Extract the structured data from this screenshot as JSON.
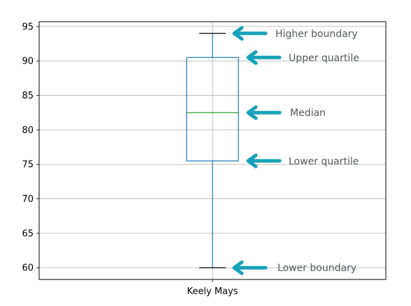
{
  "chart_data": {
    "type": "box",
    "categories": [
      "Keely Mays"
    ],
    "series": [
      {
        "category": "Keely Mays",
        "min": 60,
        "q1": 75.5,
        "median": 82.5,
        "q3": 90.5,
        "max": 94
      }
    ],
    "ylim": [
      58.3,
      95.7
    ],
    "yticks": [
      60,
      65,
      70,
      75,
      80,
      85,
      90,
      95
    ],
    "grid": true,
    "colors": {
      "box": "#1f77b4",
      "median": "#2ca02c",
      "cap": "#000000",
      "grid": "#b0b0b0",
      "arrow": "#17a2b8",
      "annotation": "#505a5a"
    },
    "annotations": [
      {
        "key": "higher-boundary",
        "text": "Higher boundary",
        "value_of": "max"
      },
      {
        "key": "upper-quartile",
        "text": "Upper quartile",
        "value_of": "q3"
      },
      {
        "key": "median",
        "text": "Median",
        "value_of": "median"
      },
      {
        "key": "lower-quartile",
        "text": "Lower quartile",
        "value_of": "q1"
      },
      {
        "key": "lower-boundary",
        "text": "Lower boundary",
        "value_of": "min"
      }
    ]
  }
}
